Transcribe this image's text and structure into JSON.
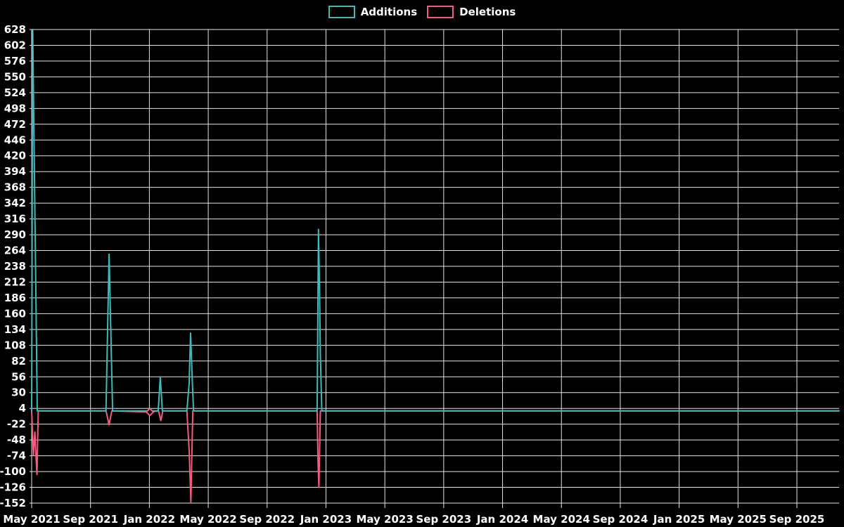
{
  "page": {
    "background": "#000000",
    "text_color": "#ffffff",
    "grid_color": "#e6e6e6"
  },
  "legend": {
    "items": [
      {
        "label": "Additions",
        "color": "#3fb9b9"
      },
      {
        "label": "Deletions",
        "color": "#f25c7d"
      }
    ]
  },
  "chart_data": {
    "type": "line",
    "title": "",
    "xlabel": "",
    "ylabel": "",
    "legend_position": "top-center",
    "grid": true,
    "background_color": "#000000",
    "grid_color": "#e6e6e6",
    "tick_text_color": "#ffffff",
    "x_axis": {
      "tick_labels": [
        "May 2021",
        "Sep 2021",
        "Jan 2022",
        "May 2022",
        "Sep 2022",
        "Jan 2023",
        "May 2023",
        "Sep 2023",
        "Jan 2024",
        "May 2024",
        "Sep 2024",
        "Jan 2025",
        "May 2025",
        "Sep 2025"
      ],
      "months_between_ticks": 4
    },
    "y_axis": {
      "min": -152,
      "max": 628,
      "step": 26,
      "tick_values": [
        628,
        602,
        576,
        550,
        524,
        498,
        472,
        446,
        420,
        394,
        368,
        342,
        316,
        290,
        264,
        238,
        212,
        186,
        160,
        134,
        108,
        82,
        56,
        30,
        4,
        -22,
        -48,
        -74,
        -100,
        -126,
        -152
      ]
    },
    "series": [
      {
        "name": "Deletions",
        "color": "#f25c7d",
        "points": [
          [
            0.0,
            0
          ],
          [
            0.12,
            -73
          ],
          [
            0.22,
            -35
          ],
          [
            0.36,
            -105
          ],
          [
            0.45,
            0
          ],
          [
            5.05,
            0
          ],
          [
            5.26,
            -23
          ],
          [
            5.45,
            0
          ],
          [
            8.03,
            -2
          ],
          [
            8.62,
            0
          ],
          [
            8.78,
            -16
          ],
          [
            8.92,
            0
          ],
          [
            10.55,
            0
          ],
          [
            10.7,
            -64
          ],
          [
            10.82,
            -150
          ],
          [
            10.95,
            0
          ],
          [
            19.4,
            0
          ],
          [
            19.46,
            -85
          ],
          [
            19.52,
            -126
          ],
          [
            19.62,
            0
          ],
          [
            54.87,
            0
          ]
        ],
        "diamond_markers": [
          [
            8.03,
            -2
          ]
        ]
      },
      {
        "name": "Additions",
        "color": "#3fb9b9",
        "points": [
          [
            0.0,
            0
          ],
          [
            0.07,
            628
          ],
          [
            0.38,
            0
          ],
          [
            5.05,
            0
          ],
          [
            5.26,
            258
          ],
          [
            5.5,
            0
          ],
          [
            8.6,
            0
          ],
          [
            8.74,
            56
          ],
          [
            8.88,
            0
          ],
          [
            10.55,
            0
          ],
          [
            10.7,
            45
          ],
          [
            10.8,
            128
          ],
          [
            10.93,
            40
          ],
          [
            11.0,
            0
          ],
          [
            19.4,
            0
          ],
          [
            19.49,
            299
          ],
          [
            19.56,
            200
          ],
          [
            19.62,
            90
          ],
          [
            19.72,
            0
          ],
          [
            54.87,
            0
          ]
        ],
        "diamond_markers": []
      }
    ],
    "notable_values": {
      "additions_peaks": [
        628,
        258,
        56,
        128,
        299
      ],
      "deletions_troughs": [
        -105,
        -23,
        -16,
        -150,
        -126
      ]
    }
  }
}
